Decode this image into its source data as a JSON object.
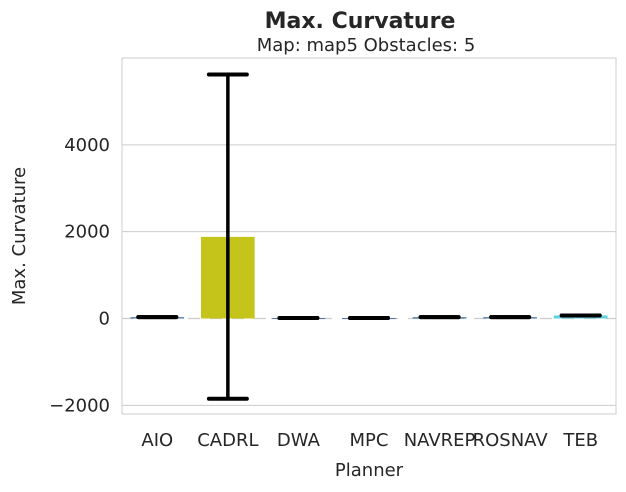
{
  "chart_data": {
    "type": "bar",
    "title": "Max. Curvature",
    "subtitle": "Map: map5 Obstacles: 5",
    "xlabel": "Planner",
    "ylabel": "Max. Curvature",
    "categories": [
      "AIO",
      "CADRL",
      "DWA",
      "MPC",
      "NAVREP",
      "ROSNAV",
      "TEB"
    ],
    "values": [
      30,
      1880,
      10,
      10,
      30,
      30,
      70
    ],
    "error_low": [
      30,
      -1850,
      10,
      10,
      30,
      30,
      70
    ],
    "error_high": [
      30,
      5620,
      10,
      10,
      30,
      30,
      70
    ],
    "bar_colors": [
      "#4c72b0",
      "#c4c41a",
      "#4c72b0",
      "#4c72b0",
      "#4c72b0",
      "#4c72b0",
      "#5fd3e0"
    ],
    "ylim": [
      -2200,
      6000
    ],
    "yticks": [
      -2000,
      0,
      2000,
      4000
    ],
    "ytick_labels": [
      "−2000",
      "0",
      "2000",
      "4000"
    ],
    "grid": true,
    "zero_line": "dashed"
  }
}
